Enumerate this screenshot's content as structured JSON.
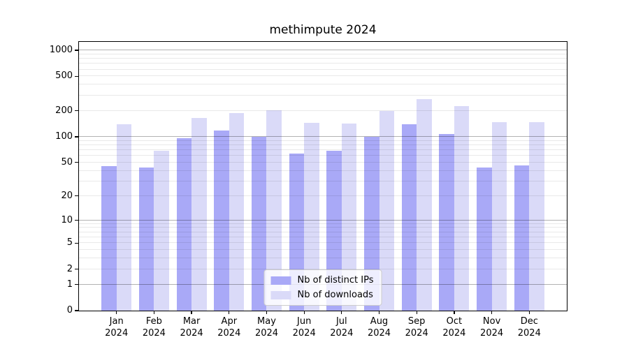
{
  "title": "methimpute 2024",
  "colors": {
    "distinct_ips": "#a9a9f7",
    "downloads": "#dadaf8",
    "grid_major": "rgba(0,0,0,0.30)",
    "grid_minor": "rgba(0,0,0,0.085)",
    "axis": "#000000",
    "legend_border": "#cccccc"
  },
  "legend": {
    "items": [
      {
        "label": "Nb of distinct IPs",
        "color_key": "distinct_ips"
      },
      {
        "label": "Nb of downloads",
        "color_key": "downloads"
      }
    ]
  },
  "chart_data": {
    "type": "bar",
    "title": "methimpute 2024",
    "categories": [
      "Jan",
      "Feb",
      "Mar",
      "Apr",
      "May",
      "Jun",
      "Jul",
      "Aug",
      "Sep",
      "Oct",
      "Nov",
      "Dec"
    ],
    "year": "2024",
    "series": [
      {
        "name": "Nb of distinct IPs",
        "color_key": "distinct_ips",
        "values": [
          45,
          44,
          96,
          119,
          99,
          64,
          69,
          99,
          141,
          108,
          44,
          46
        ]
      },
      {
        "name": "Nb of downloads",
        "color_key": "downloads",
        "values": [
          139,
          69,
          164,
          190,
          204,
          145,
          142,
          198,
          274,
          228,
          148,
          148
        ]
      }
    ],
    "yscale": "log1p",
    "ylim": [
      0,
      1262
    ],
    "yticks_labeled": [
      0,
      1,
      2,
      5,
      10,
      20,
      50,
      100,
      200,
      500,
      1000
    ],
    "grid_major": [
      1,
      10,
      100,
      1000
    ],
    "grid_minor": [
      2,
      3,
      4,
      5,
      6,
      7,
      8,
      9,
      20,
      30,
      40,
      50,
      60,
      70,
      80,
      90,
      200,
      300,
      400,
      500,
      600,
      700,
      800,
      900
    ],
    "legend_position": "lower center",
    "bar_width_fraction": 0.4
  }
}
